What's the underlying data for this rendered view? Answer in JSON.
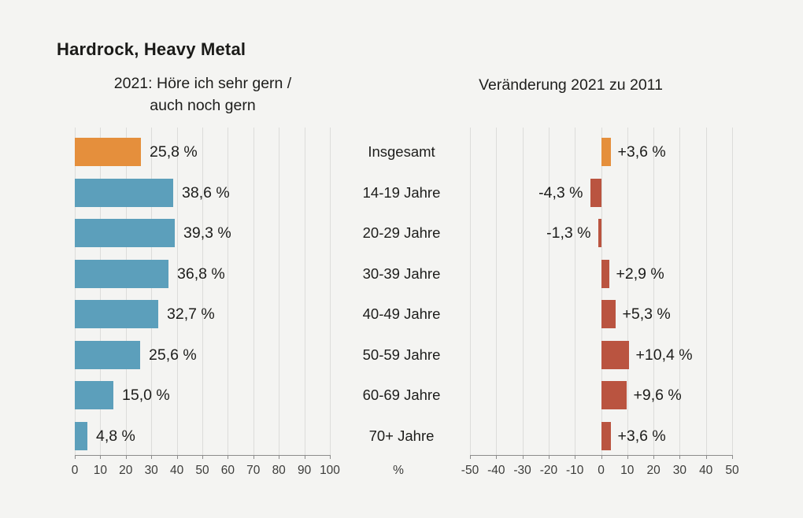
{
  "page": {
    "background": "#F4F4F2"
  },
  "title": "Hardrock, Heavy Metal",
  "left_chart": {
    "subtitle_line1": "2021: Höre ich sehr gern /",
    "subtitle_line2": "auch noch gern",
    "axis_ticks": [
      "0",
      "10",
      "20",
      "30",
      "40",
      "50",
      "60",
      "70",
      "80",
      "90",
      "100"
    ],
    "unit_label": "%"
  },
  "right_chart": {
    "subtitle": "Veränderung 2021 zu 2011",
    "axis_ticks": [
      "-50",
      "-40",
      "-30",
      "-20",
      "-10",
      "0",
      "10",
      "20",
      "30",
      "40",
      "50"
    ]
  },
  "chart_data": {
    "type": "bar",
    "orientation": "horizontal",
    "title": "Hardrock, Heavy Metal",
    "categories": [
      "Insgesamt",
      "14-19 Jahre",
      "20-29 Jahre",
      "30-39 Jahre",
      "40-49 Jahre",
      "50-59 Jahre",
      "60-69 Jahre",
      "70+ Jahre"
    ],
    "series": [
      {
        "name": "2021: Höre ich sehr gern / auch noch gern",
        "values": [
          25.8,
          38.6,
          39.3,
          36.8,
          32.7,
          25.6,
          15.0,
          4.8
        ],
        "labels": [
          "25,8 %",
          "38,6 %",
          "39,3 %",
          "36,8 %",
          "32,7 %",
          "25,6 %",
          "15,0 %",
          "4,8 %"
        ],
        "xlim": [
          0,
          100
        ],
        "unit": "%"
      },
      {
        "name": "Veränderung 2021 zu 2011",
        "values": [
          3.6,
          -4.3,
          -1.3,
          2.9,
          5.3,
          10.4,
          9.6,
          3.6
        ],
        "labels": [
          "+3,6 %",
          "-4,3 %",
          "-1,3 %",
          "+2,9 %",
          "+5,3 %",
          "+10,4 %",
          "+9,6 %",
          "+3,6 %"
        ],
        "xlim": [
          -50,
          50
        ]
      }
    ],
    "highlight_index": 0,
    "grid": true,
    "legend": "none",
    "colors": {
      "highlight": "#E58F3C",
      "left_bar": "#5C9FBB",
      "right_bar": "#BA5440",
      "gridline": "#DCDCDA",
      "axis": "#8C8C8C",
      "text": "#1D1D1B",
      "tick_text": "#3C3C3A"
    }
  }
}
